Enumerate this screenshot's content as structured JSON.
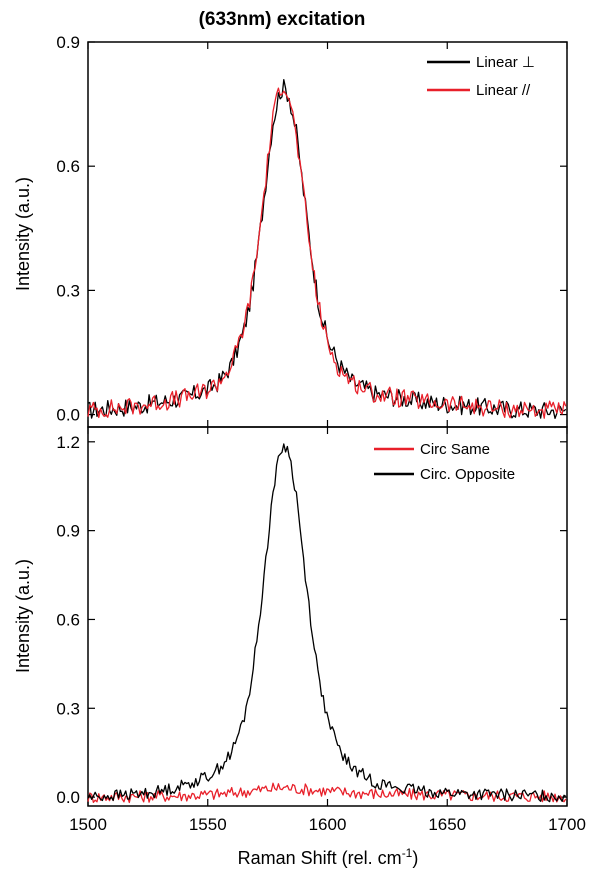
{
  "colors": {
    "black": "#000000",
    "red": "#e8202a"
  },
  "chart_data": [
    {
      "type": "line",
      "title": "(633nm) excitation",
      "xlabel": "",
      "ylabel": "Intensity (a.u.)",
      "xlim": [
        1500,
        1700
      ],
      "ylim": [
        -0.03,
        0.9
      ],
      "yticks": [
        0.0,
        0.3,
        0.6,
        0.9
      ],
      "ytick_labels": [
        "0.0",
        "0.3",
        "0.6",
        "0.9"
      ],
      "legend_position": "top-right",
      "series": [
        {
          "name": "Linear ⊥",
          "color": "#000000",
          "x": [
            1500,
            1510,
            1520,
            1530,
            1540,
            1550,
            1555,
            1560,
            1565,
            1568,
            1571,
            1574,
            1577,
            1580,
            1582,
            1584,
            1587,
            1590,
            1593,
            1596,
            1600,
            1605,
            1610,
            1620,
            1630,
            1640,
            1650,
            1660,
            1670,
            1680,
            1690,
            1700
          ],
          "y": [
            0.01,
            0.015,
            0.02,
            0.03,
            0.04,
            0.06,
            0.08,
            0.12,
            0.2,
            0.28,
            0.4,
            0.55,
            0.7,
            0.78,
            0.79,
            0.77,
            0.68,
            0.54,
            0.4,
            0.28,
            0.18,
            0.12,
            0.08,
            0.05,
            0.04,
            0.03,
            0.025,
            0.02,
            0.015,
            0.012,
            0.01,
            0.01
          ]
        },
        {
          "name": "Linear //",
          "color": "#e8202a",
          "x": [
            1500,
            1510,
            1520,
            1530,
            1540,
            1550,
            1555,
            1560,
            1565,
            1568,
            1571,
            1574,
            1577,
            1580,
            1582,
            1584,
            1587,
            1590,
            1593,
            1596,
            1600,
            1605,
            1610,
            1620,
            1630,
            1640,
            1650,
            1660,
            1670,
            1680,
            1690,
            1700
          ],
          "y": [
            0.01,
            0.015,
            0.02,
            0.03,
            0.04,
            0.06,
            0.08,
            0.12,
            0.21,
            0.29,
            0.41,
            0.56,
            0.71,
            0.79,
            0.8,
            0.77,
            0.67,
            0.53,
            0.39,
            0.27,
            0.17,
            0.11,
            0.08,
            0.05,
            0.04,
            0.03,
            0.025,
            0.02,
            0.015,
            0.012,
            0.01,
            0.01
          ]
        }
      ]
    },
    {
      "type": "line",
      "xlabel": "Raman Shift (rel. cm",
      "xlabel_sup": "-1",
      "xlabel_tail": ")",
      "ylabel": "Intensity (a.u.)",
      "xlim": [
        1500,
        1700
      ],
      "ylim": [
        -0.03,
        1.25
      ],
      "xticks": [
        1500,
        1550,
        1600,
        1650,
        1700
      ],
      "xtick_labels": [
        "1500",
        "1550",
        "1600",
        "1650",
        "1700"
      ],
      "yticks": [
        0.0,
        0.3,
        0.6,
        0.9,
        1.2
      ],
      "ytick_labels": [
        "0.0",
        "0.3",
        "0.6",
        "0.9",
        "1.2"
      ],
      "legend_position": "top-right",
      "series": [
        {
          "name": "Circ Same",
          "color": "#e8202a",
          "x": [
            1500,
            1520,
            1540,
            1555,
            1565,
            1572,
            1578,
            1582,
            1586,
            1592,
            1600,
            1610,
            1625,
            1640,
            1660,
            1680,
            1700
          ],
          "y": [
            0.0,
            0.002,
            0.005,
            0.01,
            0.018,
            0.025,
            0.03,
            0.033,
            0.03,
            0.025,
            0.02,
            0.015,
            0.01,
            0.008,
            0.005,
            0.003,
            0.002
          ]
        },
        {
          "name": "Circ. Opposite",
          "color": "#000000",
          "x": [
            1500,
            1510,
            1520,
            1530,
            1540,
            1550,
            1555,
            1560,
            1565,
            1568,
            1571,
            1574,
            1577,
            1580,
            1582,
            1584,
            1587,
            1590,
            1593,
            1596,
            1600,
            1605,
            1610,
            1620,
            1630,
            1640,
            1650,
            1660,
            1670,
            1680,
            1690,
            1700
          ],
          "y": [
            0.0,
            0.005,
            0.01,
            0.02,
            0.04,
            0.07,
            0.1,
            0.15,
            0.26,
            0.38,
            0.56,
            0.78,
            1.02,
            1.16,
            1.19,
            1.16,
            1.02,
            0.8,
            0.6,
            0.42,
            0.26,
            0.16,
            0.1,
            0.05,
            0.03,
            0.02,
            0.015,
            0.01,
            0.008,
            0.006,
            0.005,
            0.004
          ]
        }
      ]
    }
  ]
}
